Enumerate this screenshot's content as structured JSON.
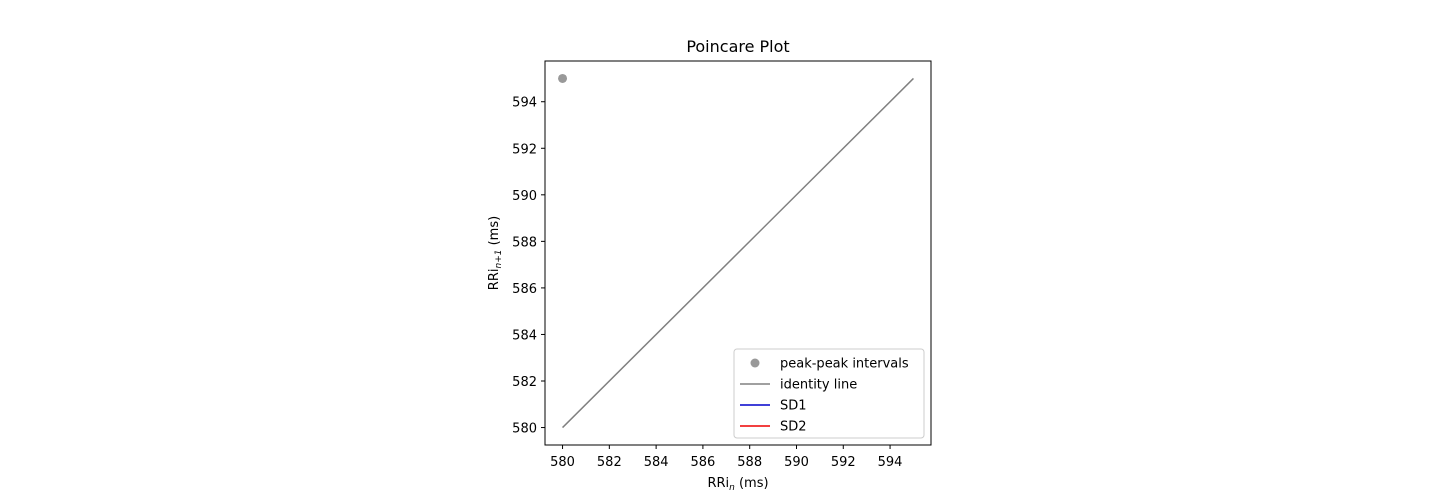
{
  "chart_data": {
    "type": "scatter",
    "title": "Poincare Plot",
    "xlabel_base": "RRi",
    "xlabel_sub": "n",
    "xlabel_unit": " (ms)",
    "ylabel_base": "RRi",
    "ylabel_sub": "n+1",
    "ylabel_unit": " (ms)",
    "xlim": [
      579.25,
      595.75
    ],
    "ylim": [
      579.25,
      595.75
    ],
    "xticks": [
      580,
      582,
      584,
      586,
      588,
      590,
      592,
      594
    ],
    "yticks": [
      580,
      582,
      584,
      586,
      588,
      590,
      592,
      594
    ],
    "points": [
      {
        "x": 580,
        "y": 595
      }
    ],
    "identity_line": [
      [
        580,
        580
      ],
      [
        595,
        595
      ]
    ],
    "legend_position": "lower right",
    "series": [
      {
        "name": "peak-peak intervals",
        "kind": "marker",
        "color": "#999999"
      },
      {
        "name": "identity line",
        "kind": "line",
        "color": "#808080"
      },
      {
        "name": "SD1",
        "kind": "line",
        "color": "#0000cc"
      },
      {
        "name": "SD2",
        "kind": "line",
        "color": "#ee0000"
      }
    ]
  }
}
